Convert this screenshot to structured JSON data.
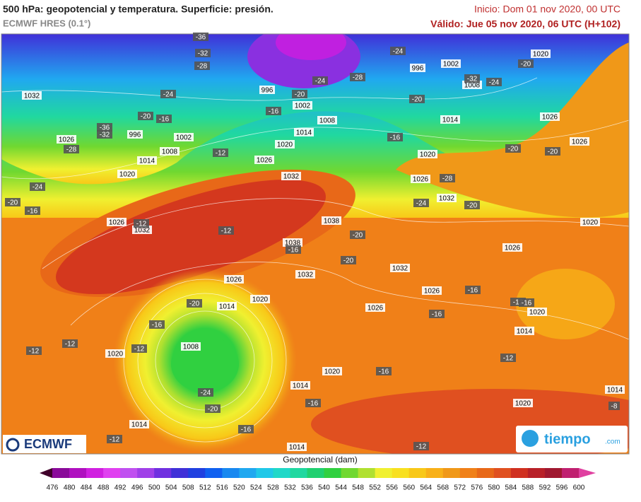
{
  "header": {
    "title": "500 hPa: geopotencial y temperatura. Superficie: presión.",
    "subtitle": "ECMWF HRES (0.1°)",
    "init": "Inicio: Dom 01 nov 2020, 00 UTC",
    "valid": "Válido: Jue 05 nov 2020, 06 UTC (H+102)"
  },
  "map": {
    "pressure_labels": [
      1032,
      1026,
      1020,
      1014,
      1008,
      1002,
      996,
      996,
      1002,
      1008,
      1014,
      1020,
      1026,
      1032,
      1038,
      1038,
      1032,
      1026,
      1020,
      1014,
      1008,
      1020,
      1014,
      1014,
      1014,
      1020,
      1026,
      1032,
      1026,
      1020,
      1014,
      1020,
      1014,
      1020,
      1026,
      1026,
      1026,
      1020,
      1002,
      996,
      1008,
      1014,
      1020,
      1026,
      1032,
      1026,
      1032
    ],
    "temperature_labels": [
      -36,
      -32,
      -28,
      -24,
      -20,
      -16,
      -36,
      -32,
      -28,
      -24,
      -20,
      -16,
      -12,
      -12,
      -12,
      -16,
      -20,
      -24,
      -28,
      -24,
      -20,
      -32,
      -24,
      -20,
      -16,
      -28,
      -24,
      -20,
      -20,
      -20,
      -20,
      -20,
      -16,
      -16,
      -16,
      -12,
      -16,
      -12,
      -8,
      -16,
      -16,
      -20,
      -24,
      -16,
      -20,
      -12,
      -12,
      -12,
      -16,
      -12,
      -12
    ],
    "logo_left": "ECMWF",
    "logo_right": "tiempo",
    "logo_right_suffix": ".com"
  },
  "colorbar": {
    "label": "Geopotencial (dam)",
    "ticks": [
      476,
      480,
      484,
      488,
      492,
      496,
      500,
      504,
      508,
      512,
      516,
      520,
      524,
      528,
      532,
      536,
      540,
      544,
      548,
      552,
      556,
      560,
      564,
      568,
      572,
      576,
      580,
      584,
      588,
      592,
      596,
      600
    ],
    "colors": [
      "#8a0a9a",
      "#b010c0",
      "#d020e0",
      "#e040f0",
      "#c050f0",
      "#a040e8",
      "#7030e0",
      "#4030d8",
      "#2040e0",
      "#1060f0",
      "#1888f0",
      "#20a8f0",
      "#20c8e8",
      "#20d8c8",
      "#20d8a0",
      "#20d070",
      "#30d040",
      "#70d830",
      "#b0e030",
      "#f0f030",
      "#f8e020",
      "#f8c818",
      "#f8b018",
      "#f09818",
      "#f08018",
      "#e86818",
      "#e05020",
      "#d03020",
      "#b82028",
      "#a01830",
      "#c02070"
    ],
    "low_color": "#40002a",
    "high_color": "#e040a0"
  }
}
